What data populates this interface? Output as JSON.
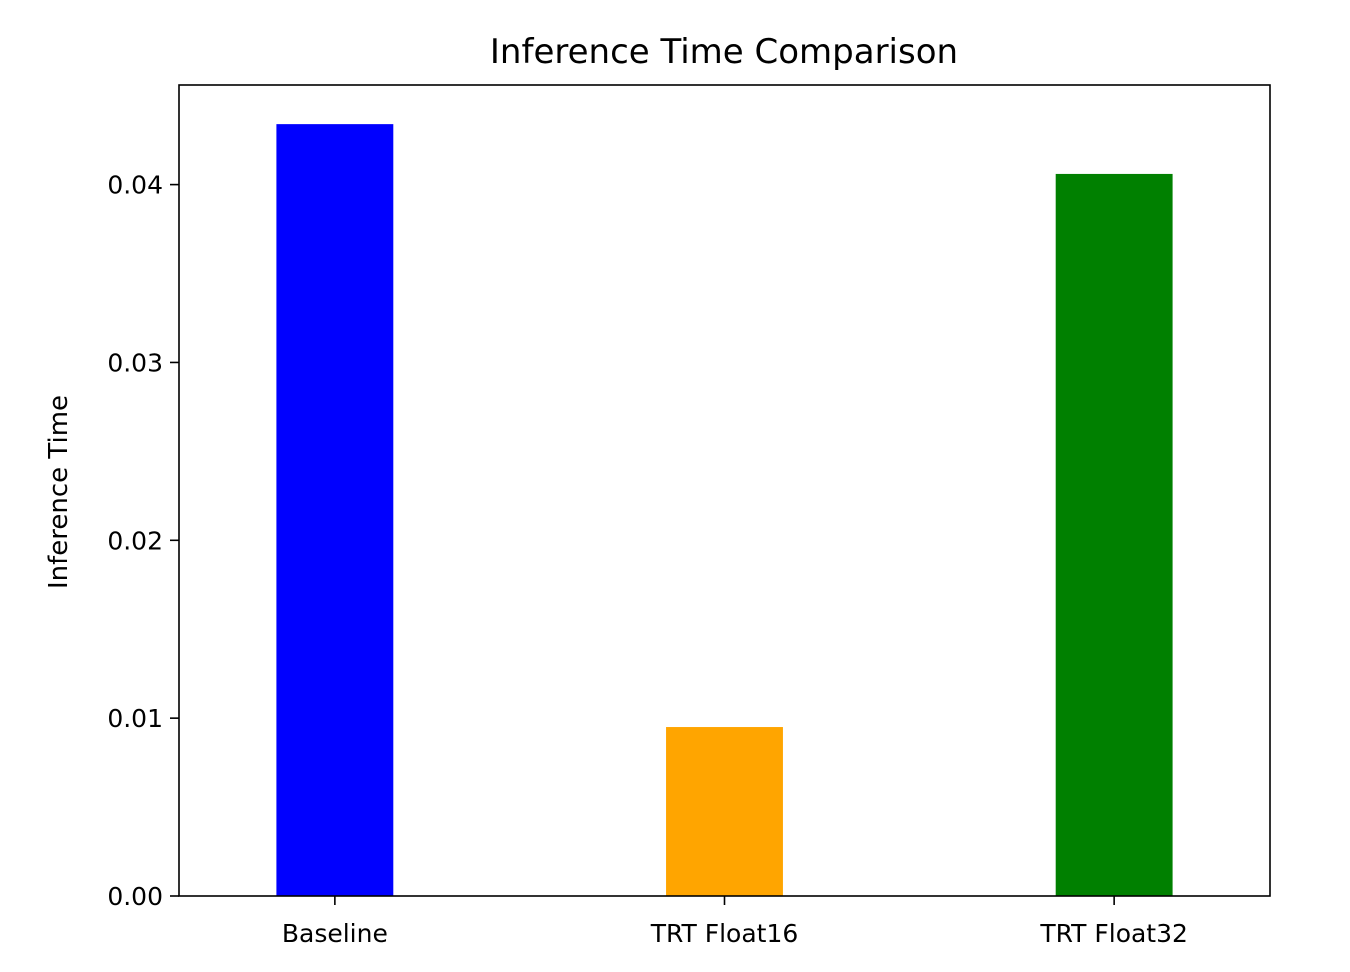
{
  "chart_data": {
    "type": "bar",
    "title": "Inference Time Comparison",
    "xlabel": "",
    "ylabel": "Inference Time",
    "categories": [
      "Baseline",
      "TRT Float16",
      "TRT Float32"
    ],
    "values": [
      0.0434,
      0.0095,
      0.0406
    ],
    "colors": [
      "#0000ff",
      "#ffa500",
      "#008000"
    ],
    "ylim": [
      0,
      0.0456
    ],
    "yticks": [
      0.0,
      0.01,
      0.02,
      0.03,
      0.04
    ],
    "ytick_labels": [
      "0.00",
      "0.01",
      "0.02",
      "0.03",
      "0.04"
    ],
    "grid": false,
    "legend": "none"
  }
}
